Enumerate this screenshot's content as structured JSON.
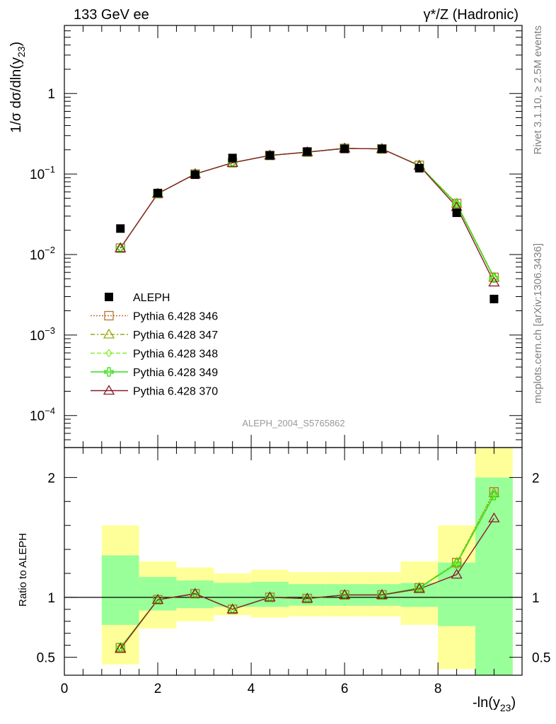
{
  "header": {
    "energy_label": "133 GeV ee",
    "process_label": "γ*/Z (Hadronic)"
  },
  "side_labels": {
    "rivet": "Rivet 3.1.10, ≥ 2.5M events",
    "mcplots": "mcplots.cern.ch [arXiv:1306.3436]"
  },
  "analysis_label": "ALEPH_2004_S5765862",
  "legend": {
    "entries": [
      {
        "label": "ALEPH",
        "marker": "filled-square",
        "color": "#000000",
        "dash": ""
      },
      {
        "label": "Pythia 6.428 346",
        "marker": "open-square",
        "color": "#b87333",
        "dash": "2,2"
      },
      {
        "label": "Pythia 6.428 347",
        "marker": "open-triangle",
        "color": "#99aa11",
        "dash": "6,3,2,3"
      },
      {
        "label": "Pythia 6.428 348",
        "marker": "open-diamond",
        "color": "#88ee33",
        "dash": "6,3"
      },
      {
        "label": "Pythia 6.428 349",
        "marker": "cross",
        "color": "#33dd11",
        "dash": ""
      },
      {
        "label": "Pythia 6.428 370",
        "marker": "open-triangle",
        "color": "#8b1a2a",
        "dash": ""
      }
    ]
  },
  "chart_data": [
    {
      "type": "scatter",
      "panel": "main",
      "ylabel": "1/σ dσ/dln(y23)",
      "yscale": "log",
      "ylim": [
        4e-05,
        7
      ],
      "xlim": [
        0,
        9.8
      ],
      "yticks": [
        {
          "value": 0.0001,
          "base": "10",
          "exp": "−4"
        },
        {
          "value": 0.001,
          "base": "10",
          "exp": "−3"
        },
        {
          "value": 0.01,
          "base": "10",
          "exp": "−2"
        },
        {
          "value": 0.1,
          "base": "10",
          "exp": "−1"
        },
        {
          "value": 1,
          "base": "1",
          "exp": ""
        }
      ],
      "x": [
        1.2,
        2.0,
        2.8,
        3.6,
        4.4,
        5.2,
        6.0,
        6.8,
        7.6,
        8.4,
        9.2
      ],
      "data": {
        "name": "ALEPH",
        "values": [
          0.021,
          0.058,
          0.098,
          0.158,
          0.17,
          0.19,
          0.205,
          0.205,
          0.118,
          0.033,
          0.0028
        ]
      },
      "series": [
        {
          "name": "Pythia 6.428 346",
          "values": [
            0.012,
            0.057,
            0.1,
            0.138,
            0.17,
            0.187,
            0.208,
            0.205,
            0.128,
            0.043,
            0.0052
          ]
        },
        {
          "name": "Pythia 6.428 347",
          "values": [
            0.012,
            0.057,
            0.1,
            0.138,
            0.17,
            0.187,
            0.208,
            0.205,
            0.128,
            0.043,
            0.0052
          ]
        },
        {
          "name": "Pythia 6.428 348",
          "values": [
            0.012,
            0.057,
            0.1,
            0.138,
            0.17,
            0.187,
            0.208,
            0.205,
            0.128,
            0.043,
            0.0051
          ]
        },
        {
          "name": "Pythia 6.428 349",
          "values": [
            0.012,
            0.057,
            0.1,
            0.138,
            0.17,
            0.187,
            0.208,
            0.205,
            0.128,
            0.042,
            0.0051
          ]
        },
        {
          "name": "Pythia 6.428 370",
          "values": [
            0.012,
            0.057,
            0.1,
            0.138,
            0.17,
            0.187,
            0.208,
            0.205,
            0.127,
            0.039,
            0.0045
          ]
        }
      ]
    },
    {
      "type": "scatter",
      "panel": "ratio",
      "ylabel": "Ratio to ALEPH",
      "xlabel": "-ln(y23)",
      "ylim": [
        0.35,
        2.25
      ],
      "xlim": [
        0,
        9.8
      ],
      "xticks": [
        0,
        2,
        4,
        6,
        8
      ],
      "yticks": [
        0.5,
        1,
        2
      ],
      "x": [
        1.2,
        2.0,
        2.8,
        3.6,
        4.4,
        5.2,
        6.0,
        6.8,
        7.6,
        8.4,
        9.2
      ],
      "bin_edges": [
        0.8,
        1.6,
        2.4,
        3.2,
        4.0,
        4.8,
        5.6,
        6.4,
        7.2,
        8.0,
        8.8,
        9.6
      ],
      "band_inner": {
        "low": [
          0.77,
          0.89,
          0.91,
          0.92,
          0.92,
          0.93,
          0.93,
          0.93,
          0.92,
          0.76,
          0.35
        ],
        "high": [
          1.35,
          1.17,
          1.14,
          1.12,
          1.13,
          1.11,
          1.11,
          1.11,
          1.12,
          1.29,
          2.0
        ]
      },
      "band_outer": {
        "low": [
          0.44,
          0.74,
          0.8,
          0.85,
          0.83,
          0.84,
          0.84,
          0.84,
          0.77,
          0.4,
          0.35
        ],
        "high": [
          1.6,
          1.3,
          1.25,
          1.2,
          1.23,
          1.21,
          1.21,
          1.21,
          1.3,
          1.6,
          2.25
        ]
      },
      "band_colors": {
        "inner": "#99ff99",
        "outer": "#ffff99"
      },
      "series": [
        {
          "name": "Pythia 6.428 346",
          "values": [
            0.58,
            0.98,
            1.03,
            0.9,
            1.0,
            0.99,
            1.02,
            1.02,
            1.08,
            1.29,
            1.88
          ]
        },
        {
          "name": "Pythia 6.428 347",
          "values": [
            0.58,
            0.98,
            1.03,
            0.9,
            1.0,
            0.99,
            1.02,
            1.02,
            1.08,
            1.29,
            1.87
          ]
        },
        {
          "name": "Pythia 6.428 348",
          "values": [
            0.58,
            0.98,
            1.03,
            0.9,
            1.0,
            0.99,
            1.02,
            1.02,
            1.08,
            1.29,
            1.86
          ]
        },
        {
          "name": "Pythia 6.428 349",
          "values": [
            0.58,
            0.98,
            1.03,
            0.9,
            1.0,
            0.99,
            1.02,
            1.02,
            1.08,
            1.28,
            1.85
          ]
        },
        {
          "name": "Pythia 6.428 370",
          "values": [
            0.57,
            0.98,
            1.03,
            0.9,
            1.0,
            0.99,
            1.02,
            1.02,
            1.07,
            1.19,
            1.66
          ]
        }
      ]
    }
  ]
}
